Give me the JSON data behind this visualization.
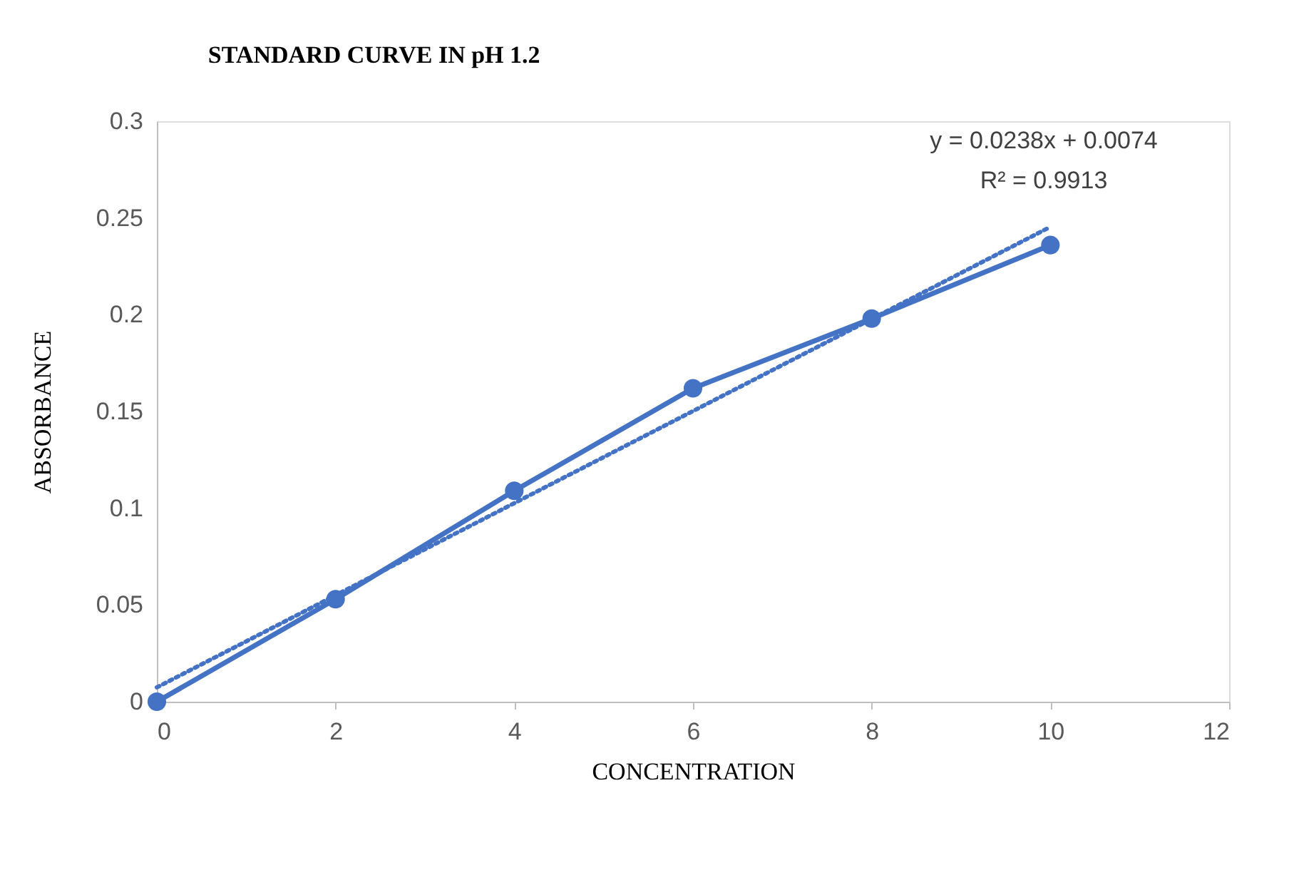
{
  "chart_data": {
    "type": "line",
    "title": "STANDARD CURVE IN pH 1.2",
    "xlabel": "CONCENTRATION",
    "ylabel": "ABSORBANCE",
    "x": [
      0,
      2,
      4,
      6,
      8,
      10
    ],
    "series": [
      {
        "color": "#4472c4",
        "values": [
          0,
          0.053,
          0.109,
          0.162,
          0.198,
          0.236
        ],
        "marker": "circle",
        "line_style": "solid"
      },
      {
        "type": "line",
        "color": "#4472c4",
        "x": [
          0,
          10
        ],
        "values": [
          0.0074,
          0.2454
        ],
        "marker": "none",
        "line_style": "dotted"
      }
    ],
    "annotations": [
      "y = 0.0238x + 0.0074",
      "R² = 0.9913"
    ],
    "xlim": [
      0,
      12
    ],
    "xticks": [
      0,
      2,
      4,
      6,
      8,
      10,
      12
    ],
    "ylim": [
      0,
      0.3
    ],
    "yticks": [
      0,
      0.05,
      0.1,
      0.15,
      0.2,
      0.25,
      0.3
    ],
    "grid": false
  }
}
